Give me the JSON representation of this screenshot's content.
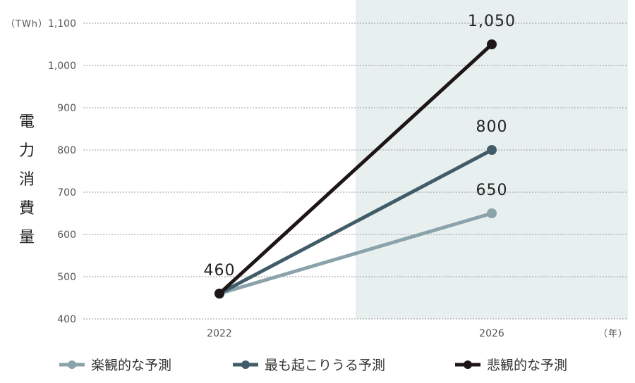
{
  "chart_data": {
    "type": "line",
    "title": "",
    "ylabel": "電力消費量",
    "yunit": "（TWh）",
    "xunit": "（年）",
    "x": [
      "2022",
      "2026"
    ],
    "ylim": [
      400,
      1100
    ],
    "yticks": [
      400,
      500,
      600,
      700,
      800,
      900,
      1000,
      1100
    ],
    "ytick_labels": [
      "400",
      "500",
      "600",
      "700",
      "800",
      "900",
      "1,000",
      "1,100"
    ],
    "grid": true,
    "shaded_region": {
      "from": "2024",
      "to": "2026"
    },
    "legend_position": "bottom",
    "series": [
      {
        "name": "楽観的な予測",
        "color": "#8aa3ab",
        "values": [
          460,
          650
        ],
        "labels": [
          "",
          "650"
        ]
      },
      {
        "name": "最も起こりうる予測",
        "color": "#3f5c68",
        "values": [
          460,
          800
        ],
        "labels": [
          "",
          "800"
        ]
      },
      {
        "name": "悲観的な予測",
        "color": "#1e1616",
        "values": [
          460,
          1050
        ],
        "labels": [
          "460",
          "1,050"
        ]
      }
    ]
  }
}
